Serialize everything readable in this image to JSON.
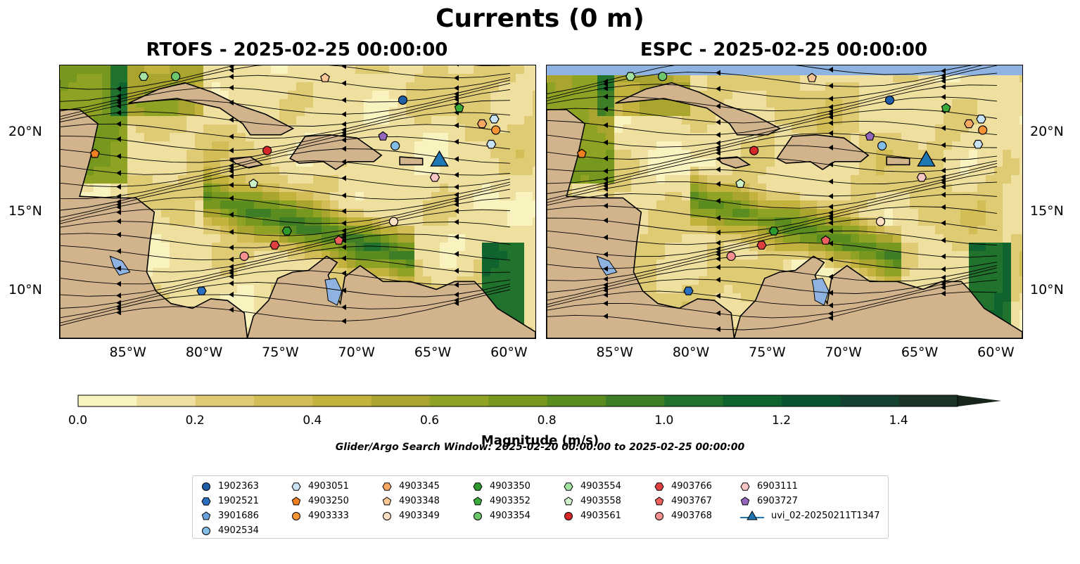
{
  "figure": {
    "title": "Currents (0 m)",
    "panels": [
      {
        "id": "rtofs",
        "title": "RTOFS - 2025-02-25 00:00:00",
        "x_ticks": [
          "85°W",
          "80°W",
          "75°W",
          "70°W",
          "65°W",
          "60°W"
        ],
        "y_ticks": [
          "20°N",
          "15°N",
          "10°N"
        ],
        "y_axis_side": "left"
      },
      {
        "id": "espc",
        "title": "ESPC - 2025-02-25 00:00:00",
        "x_ticks": [
          "85°W",
          "80°W",
          "75°W",
          "70°W",
          "65°W",
          "60°W"
        ],
        "y_ticks": [
          "20°N",
          "15°N",
          "10°N"
        ],
        "y_axis_side": "right"
      }
    ],
    "extent": {
      "lon": [
        -89.5,
        -58.3
      ],
      "lat": [
        7.0,
        24.3
      ]
    },
    "colorbar": {
      "label": "Magnitude (m/s)",
      "ticks": [
        "0.0",
        "0.2",
        "0.4",
        "0.6",
        "0.8",
        "1.0",
        "1.2",
        "1.4"
      ],
      "range": [
        0.0,
        1.5
      ],
      "extend": "max",
      "colors": [
        "#f8f3bf",
        "#efe09f",
        "#e0cb75",
        "#d3bd56",
        "#c4b23f",
        "#aaa52e",
        "#8fa223",
        "#76981f",
        "#5b8c20",
        "#3d7e27",
        "#20722d",
        "#0f632e",
        "#0b5330",
        "#134230",
        "#1c3325",
        "#17251a"
      ]
    },
    "search_window": "Glider/Argo Search Window: 2025-02-20 00:00:00 to 2025-02-25 00:00:00",
    "land_color": "#d2b48c",
    "lake_color": "#8eb3e0"
  },
  "legend": {
    "columns": [
      [
        {
          "label": "1902363",
          "marker": "circle",
          "color": "#1f5fa8"
        },
        {
          "label": "1902521",
          "marker": "hexagon",
          "color": "#2a6fc0"
        },
        {
          "label": "3901686",
          "marker": "pentagon",
          "color": "#6aa0dc"
        },
        {
          "label": "4902534",
          "marker": "circle",
          "color": "#84bde6"
        }
      ],
      [
        {
          "label": "4903051",
          "marker": "hexagon",
          "color": "#c9e3f6"
        },
        {
          "label": "4903250",
          "marker": "pentagon",
          "color": "#f08020"
        },
        {
          "label": "4903333",
          "marker": "circle",
          "color": "#f59535"
        }
      ],
      [
        {
          "label": "4903345",
          "marker": "hexagon",
          "color": "#f7a862"
        },
        {
          "label": "4903348",
          "marker": "pentagon",
          "color": "#fbc696"
        },
        {
          "label": "4903349",
          "marker": "circle",
          "color": "#fde0c2"
        }
      ],
      [
        {
          "label": "4903350",
          "marker": "hexagon",
          "color": "#2e9a2e"
        },
        {
          "label": "4903352",
          "marker": "pentagon",
          "color": "#3aaa3a"
        },
        {
          "label": "4903354",
          "marker": "circle",
          "color": "#6cc66c"
        }
      ],
      [
        {
          "label": "4903554",
          "marker": "hexagon",
          "color": "#a3e2a0"
        },
        {
          "label": "4903558",
          "marker": "pentagon",
          "color": "#cdf2c8"
        },
        {
          "label": "4903561",
          "marker": "circle",
          "color": "#d62728"
        }
      ],
      [
        {
          "label": "4903766",
          "marker": "hexagon",
          "color": "#df3f3f"
        },
        {
          "label": "4903767",
          "marker": "pentagon",
          "color": "#ee6060"
        },
        {
          "label": "4903768",
          "marker": "circle",
          "color": "#f49090"
        }
      ],
      [
        {
          "label": "6903111",
          "marker": "hexagon",
          "color": "#f9c6c6"
        },
        {
          "label": "6903727",
          "marker": "pentagon",
          "color": "#9467bd"
        },
        {
          "label": "uvi_02-20250211T1347",
          "marker": "triangle",
          "color": "#1f77b4"
        }
      ]
    ]
  },
  "markers": [
    {
      "id": "1902363",
      "lon": -67.0,
      "lat": 22.1
    },
    {
      "id": "1902521",
      "lon": -80.2,
      "lat": 10.0
    },
    {
      "id": "4902534",
      "lon": -67.5,
      "lat": 19.2
    },
    {
      "id": "4903051",
      "lon": -61.0,
      "lat": 20.9
    },
    {
      "id": "4903051",
      "lon": -61.2,
      "lat": 19.3
    },
    {
      "id": "4903250",
      "lon": -87.2,
      "lat": 18.7
    },
    {
      "id": "4903333",
      "lon": -60.9,
      "lat": 20.2
    },
    {
      "id": "4903345",
      "lon": -61.8,
      "lat": 20.6
    },
    {
      "id": "4903348",
      "lon": -72.1,
      "lat": 23.5
    },
    {
      "id": "4903349",
      "lon": -67.6,
      "lat": 14.4
    },
    {
      "id": "4903350",
      "lon": -74.6,
      "lat": 13.8
    },
    {
      "id": "4903352",
      "lon": -63.3,
      "lat": 21.6
    },
    {
      "id": "4903354",
      "lon": -81.9,
      "lat": 23.6
    },
    {
      "id": "4903554",
      "lon": -84.0,
      "lat": 23.6
    },
    {
      "id": "4903558",
      "lon": -76.8,
      "lat": 16.8
    },
    {
      "id": "4903561",
      "lon": -75.9,
      "lat": 18.9
    },
    {
      "id": "4903766",
      "lon": -75.4,
      "lat": 12.9
    },
    {
      "id": "4903767",
      "lon": -71.2,
      "lat": 13.2
    },
    {
      "id": "4903768",
      "lon": -77.4,
      "lat": 12.2
    },
    {
      "id": "6903111",
      "lon": -64.9,
      "lat": 17.2
    },
    {
      "id": "6903727",
      "lon": -68.3,
      "lat": 19.8
    },
    {
      "id": "uvi_02-20250211T1347",
      "lon": -64.6,
      "lat": 18.1
    }
  ]
}
